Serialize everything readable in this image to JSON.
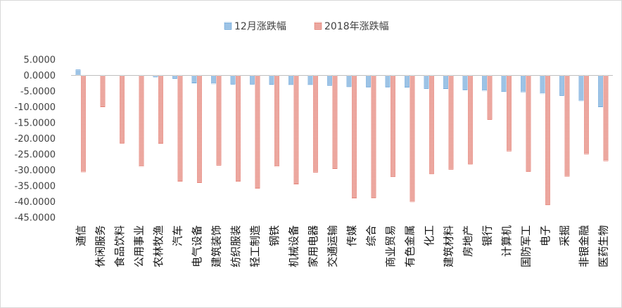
{
  "chart_data": {
    "type": "bar",
    "title": "",
    "xlabel": "",
    "ylabel": "",
    "ylim": [
      -45,
      5
    ],
    "yticks": [
      5,
      0,
      -5,
      -10,
      -15,
      -20,
      -25,
      -30,
      -35,
      -40,
      -45
    ],
    "ytick_labels": [
      "5.0000",
      "0.0000",
      "-5.0000",
      "-10.0000",
      "-15.0000",
      "-20.0000",
      "-25.0000",
      "-30.0000",
      "-35.0000",
      "-40.0000",
      "-45.0000"
    ],
    "grid": false,
    "legend_position": "top",
    "categories": [
      "通信",
      "休闲服务",
      "食品饮料",
      "公用事业",
      "农林牧渔",
      "汽车",
      "电气设备",
      "建筑装饰",
      "纺织服装",
      "轻工制造",
      "钢铁",
      "机械设备",
      "家用电器",
      "交通运输",
      "传媒",
      "综合",
      "商业贸易",
      "有色金属",
      "化工",
      "建筑材料",
      "房地产",
      "银行",
      "计算机",
      "国防军工",
      "电子",
      "采掘",
      "非银金融",
      "医药生物"
    ],
    "series": [
      {
        "name": "12月涨跌幅",
        "color": "#5b9bd5",
        "values": [
          1.8,
          0.0,
          0.0,
          0.0,
          -0.5,
          -1.0,
          -2.5,
          -2.6,
          -2.8,
          -2.8,
          -2.9,
          -3.0,
          -3.0,
          -3.2,
          -3.6,
          -3.7,
          -3.7,
          -3.8,
          -4.2,
          -4.3,
          -4.6,
          -4.8,
          -5.2,
          -5.3,
          -5.7,
          -6.4,
          -8.0,
          -10.0
        ]
      },
      {
        "name": "2018年涨跌幅",
        "color": "#e06c5f",
        "values": [
          -30.6,
          -10.0,
          -21.5,
          -28.8,
          -21.6,
          -33.6,
          -34.0,
          -28.5,
          -33.6,
          -35.8,
          -28.8,
          -34.5,
          -30.7,
          -29.6,
          -38.9,
          -38.8,
          -32.1,
          -40.0,
          -31.2,
          -29.8,
          -28.1,
          -14.0,
          -24.0,
          -30.5,
          -41.0,
          -32.0,
          -24.9,
          -27.1
        ]
      }
    ]
  }
}
